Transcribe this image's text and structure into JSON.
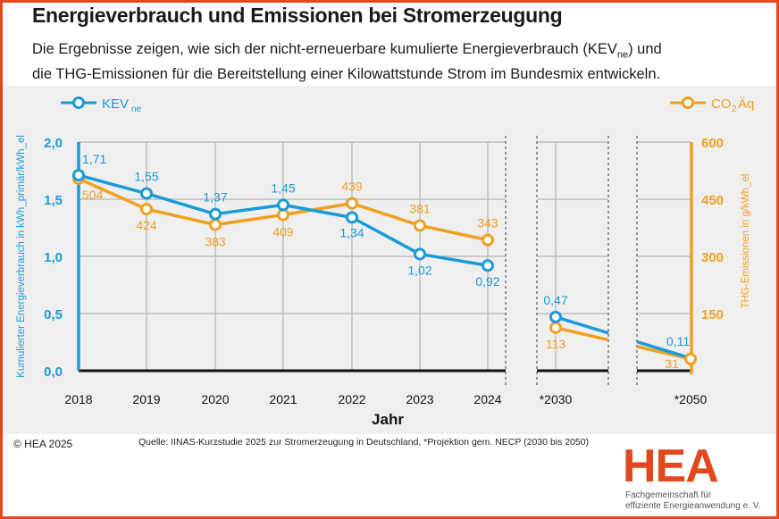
{
  "header": {
    "title": "Energieverbrauch und Emissionen bei Stromerzeugung",
    "subtitle_part1": "Die Ergebnisse zeigen, wie sich der nicht-erneuerbare kumulierte Energieverbrauch (KEV",
    "subtitle_sub": "ne",
    "subtitle_part2": ") und",
    "subtitle_line2": "die THG-Emissionen für die Bereitstellung einer Kilowattstunde Strom im Bundesmix entwickeln."
  },
  "footer": {
    "copyright": "© HEA 2025",
    "source": "Quelle: IINAS-Kurzstudie 2025 zur Stromerzeugung in Deutschland, *Projektion gem. NECP (2030 bis 2050)"
  },
  "logo": {
    "name": "HEA",
    "line1": "Fachgemeinschaft für",
    "line2": "effiziente Energieanwendung e. V."
  },
  "colors": {
    "kev": "#1a9bd7",
    "co2": "#f0a020",
    "brand": "#e2481d"
  },
  "chart_data": {
    "type": "line",
    "title": "Energieverbrauch und Emissionen bei Stromerzeugung",
    "xlabel": "Jahr",
    "ylabel_left": "Kumulierter Energieverbrauch in kWh_primär/kWh_el",
    "ylabel_right": "THG-Emissionen in g/kWh_el",
    "categories": [
      "2018",
      "2019",
      "2020",
      "2021",
      "2022",
      "2023",
      "2024",
      "*2030",
      "*2050"
    ],
    "y_left_lim": [
      0,
      2.0
    ],
    "y_left_ticks": [
      "0,0",
      "0,5",
      "1,0",
      "1,5",
      "2,0"
    ],
    "y_right_lim": [
      0,
      600
    ],
    "y_right_ticks": [
      "150",
      "300",
      "450",
      "600"
    ],
    "grid": true,
    "legend": [
      {
        "name": "KEV",
        "sub": "ne",
        "placement": "top-left"
      },
      {
        "name": "CO",
        "sub": "2",
        "suffix": "Äq",
        "placement": "top-right"
      }
    ],
    "series": [
      {
        "name": "KEV_ne",
        "axis": "left",
        "values": [
          1.71,
          1.55,
          1.37,
          1.45,
          1.34,
          1.02,
          0.92,
          0.47,
          0.11
        ],
        "labels": [
          "1,71",
          "1,55",
          "1,37",
          "1,45",
          "1,34",
          "1,02",
          "0,92",
          "0,47",
          "0,11"
        ]
      },
      {
        "name": "CO2Äq",
        "axis": "right",
        "values": [
          504,
          424,
          383,
          409,
          439,
          381,
          343,
          113,
          31
        ],
        "labels": [
          "504",
          "424",
          "383",
          "409",
          "439",
          "381",
          "343",
          "113",
          "31"
        ]
      }
    ]
  }
}
